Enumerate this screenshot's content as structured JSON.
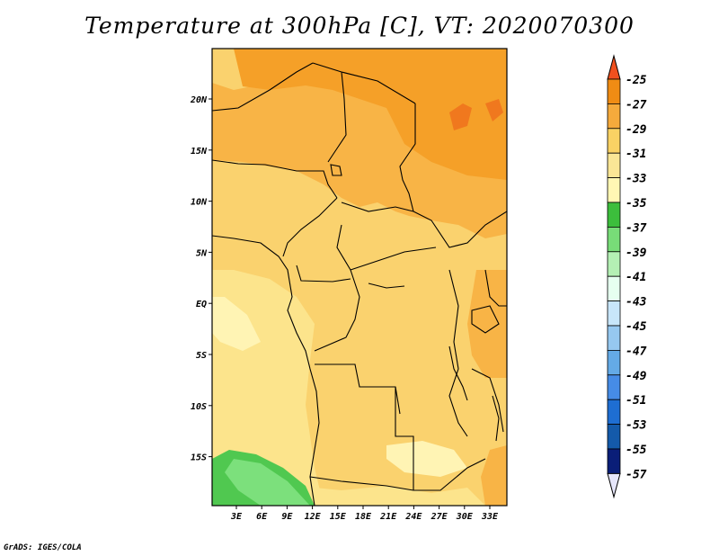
{
  "title": "Temperature at 300hPa [C], VT: 2020070300",
  "footer": "GrADS: IGES/COLA",
  "map": {
    "lon_labels": [
      "3E",
      "6E",
      "9E",
      "12E",
      "15E",
      "18E",
      "21E",
      "24E",
      "27E",
      "30E",
      "33E"
    ],
    "lat_labels": [
      "20N",
      "15N",
      "10N",
      "5N",
      "EQ",
      "5S",
      "10S",
      "15S"
    ]
  },
  "colorbar": {
    "labels": [
      "-25",
      "-27",
      "-29",
      "-31",
      "-33",
      "-35",
      "-37",
      "-39",
      "-41",
      "-43",
      "-45",
      "-47",
      "-49",
      "-51",
      "-53",
      "-55",
      "-57"
    ],
    "colors": [
      "#e65a0a",
      "#f08c14",
      "#f5aa3c",
      "#fad264",
      "#fae696",
      "#fff7b4",
      "#3cbe3c",
      "#78dc78",
      "#b4f0b4",
      "#e6fff0",
      "#c8e6fa",
      "#96c8f0",
      "#64aae6",
      "#468ce6",
      "#1e6ed2",
      "#145aaa",
      "#0a1e78"
    ],
    "over_color": "#f0501e",
    "under_color": "#e6e6fa"
  },
  "field_colors": {
    "t_minus_26": "#f0781e",
    "t_minus_28": "#f5a028",
    "t_minus_30": "#f8b446",
    "t_minus_32": "#fad26e",
    "t_minus_34": "#fce48c",
    "t_minus_36": "#fff4b4",
    "t_minus_38": "#50c850",
    "t_minus_40": "#7ce07c"
  }
}
